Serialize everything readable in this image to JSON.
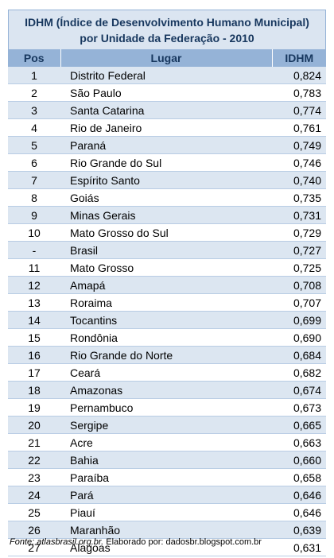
{
  "title": {
    "line1": "IDHM (Índice de Desenvolvimento Humano Municipal)",
    "line2": "por Unidade da Federação - 2010"
  },
  "table": {
    "headers": [
      "Pos",
      "Lugar",
      "IDHM"
    ],
    "rows": [
      {
        "pos": "1",
        "place": "Distrito Federal",
        "idhm": "0,824"
      },
      {
        "pos": "2",
        "place": "São Paulo",
        "idhm": "0,783"
      },
      {
        "pos": "3",
        "place": "Santa Catarina",
        "idhm": "0,774"
      },
      {
        "pos": "4",
        "place": "Rio de Janeiro",
        "idhm": "0,761"
      },
      {
        "pos": "5",
        "place": "Paraná",
        "idhm": "0,749"
      },
      {
        "pos": "6",
        "place": "Rio Grande do Sul",
        "idhm": "0,746"
      },
      {
        "pos": "7",
        "place": "Espírito Santo",
        "idhm": "0,740"
      },
      {
        "pos": "8",
        "place": "Goiás",
        "idhm": "0,735"
      },
      {
        "pos": "9",
        "place": "Minas Gerais",
        "idhm": "0,731"
      },
      {
        "pos": "10",
        "place": "Mato Grosso do Sul",
        "idhm": "0,729"
      },
      {
        "pos": "-",
        "place": "Brasil",
        "idhm": "0,727"
      },
      {
        "pos": "11",
        "place": "Mato Grosso",
        "idhm": "0,725"
      },
      {
        "pos": "12",
        "place": "Amapá",
        "idhm": "0,708"
      },
      {
        "pos": "13",
        "place": "Roraima",
        "idhm": "0,707"
      },
      {
        "pos": "14",
        "place": "Tocantins",
        "idhm": "0,699"
      },
      {
        "pos": "15",
        "place": "Rondônia",
        "idhm": "0,690"
      },
      {
        "pos": "16",
        "place": "Rio Grande do Norte",
        "idhm": "0,684"
      },
      {
        "pos": "17",
        "place": "Ceará",
        "idhm": "0,682"
      },
      {
        "pos": "18",
        "place": "Amazonas",
        "idhm": "0,674"
      },
      {
        "pos": "19",
        "place": "Pernambuco",
        "idhm": "0,673"
      },
      {
        "pos": "20",
        "place": "Sergipe",
        "idhm": "0,665"
      },
      {
        "pos": "21",
        "place": "Acre",
        "idhm": "0,663"
      },
      {
        "pos": "22",
        "place": "Bahia",
        "idhm": "0,660"
      },
      {
        "pos": "23",
        "place": "Paraíba",
        "idhm": "0,658"
      },
      {
        "pos": "24",
        "place": "Pará",
        "idhm": "0,646"
      },
      {
        "pos": "25",
        "place": "Piauí",
        "idhm": "0,646"
      },
      {
        "pos": "26",
        "place": "Maranhão",
        "idhm": "0,639"
      },
      {
        "pos": "27",
        "place": "Alagoas",
        "idhm": "0,631"
      }
    ]
  },
  "source": {
    "label": "Fonte: atlasbrasil.org.br.",
    "credit": "Elaborado por: dadosbr.blogspot.com.br"
  },
  "colors": {
    "title_bg": "#dbe5f1",
    "header_bg": "#95b3d7",
    "stripe_bg": "#dce6f1",
    "title_text": "#17375e"
  }
}
